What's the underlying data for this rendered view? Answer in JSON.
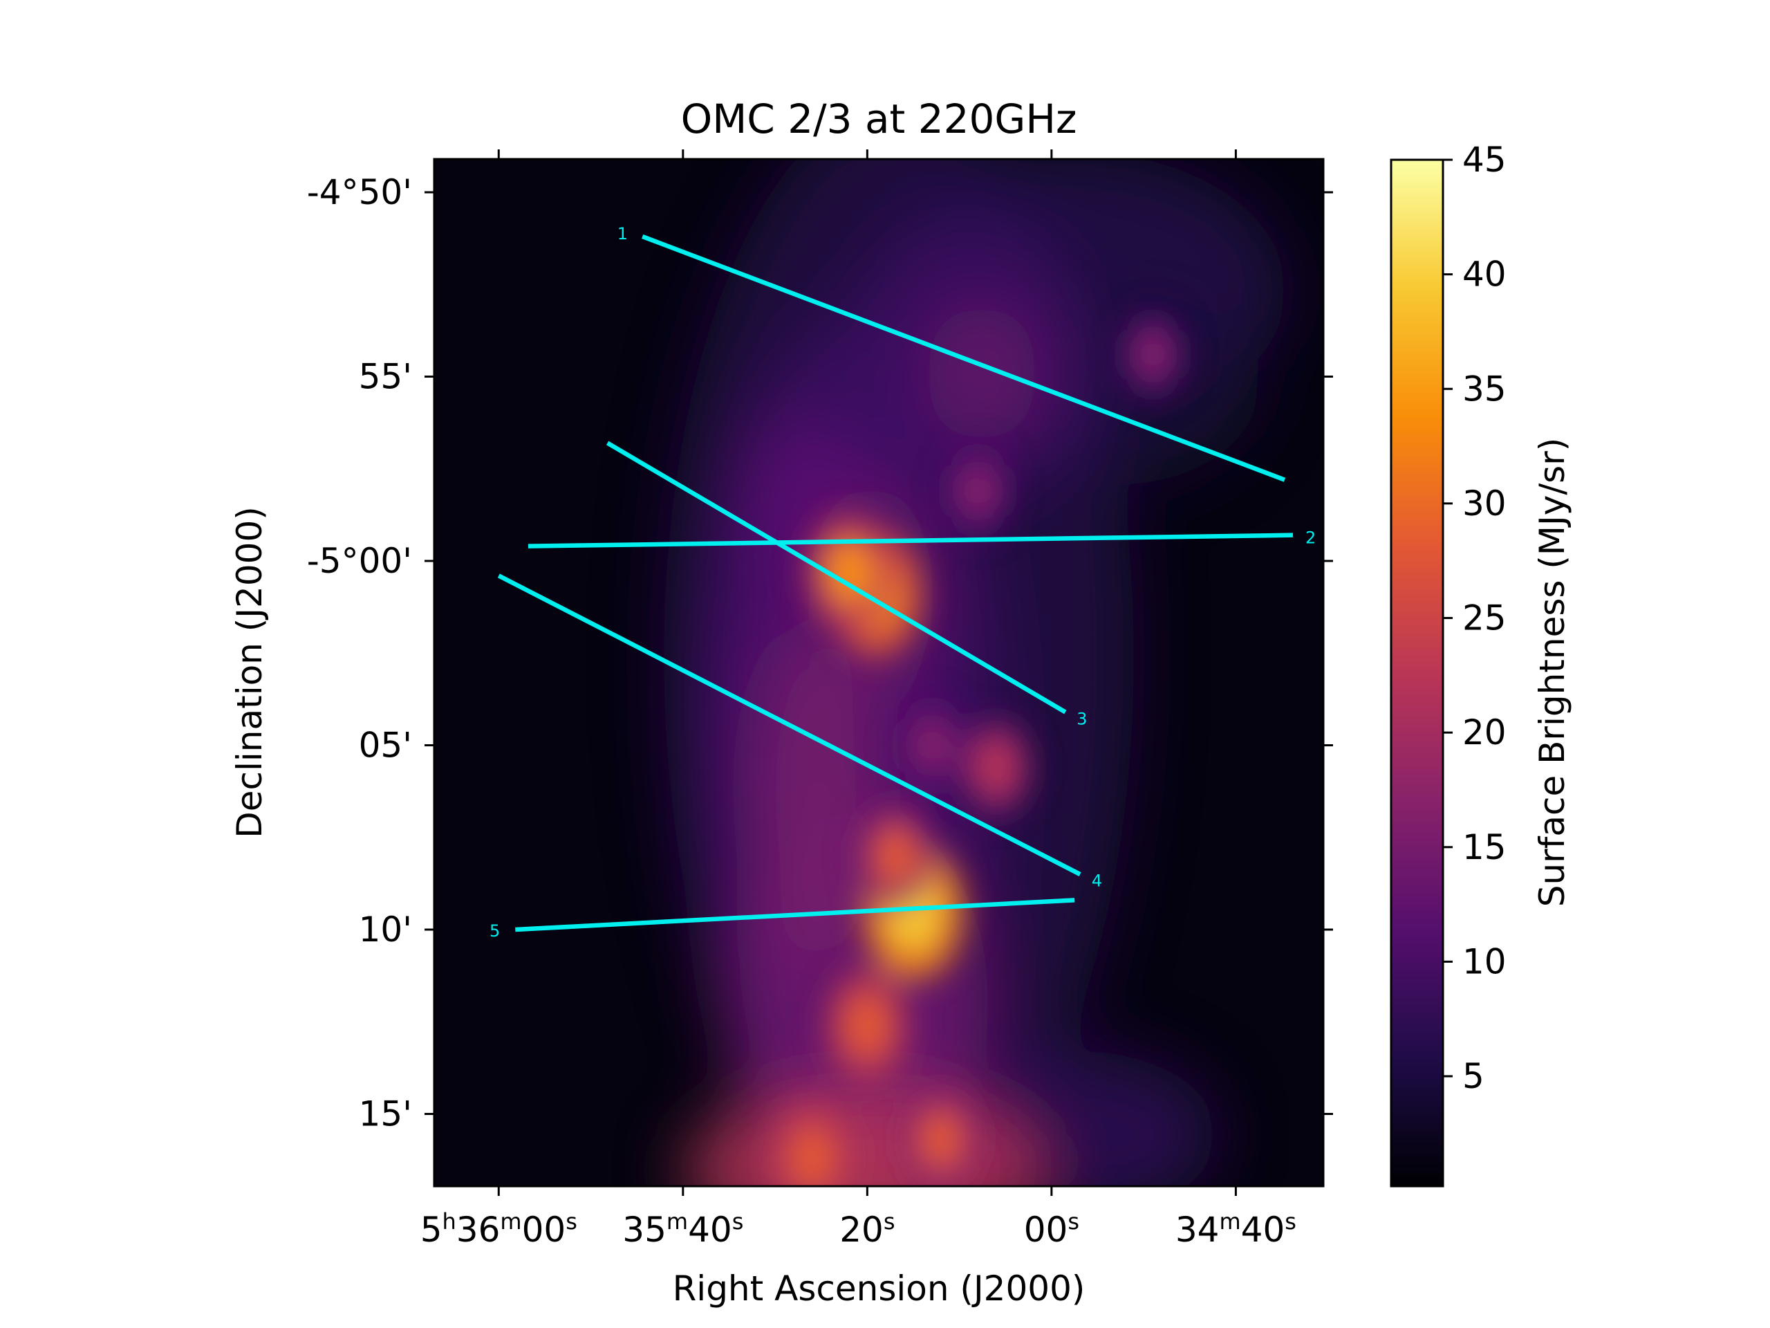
{
  "chart_data": {
    "type": "heatmap",
    "title": "OMC 2/3 at 220GHz",
    "xlabel": "Right Ascension (J2000)",
    "ylabel": "Declination (J2000)",
    "x_ticks": [
      {
        "label": "5h36m00s",
        "parts": [
          "5",
          "h",
          "36",
          "m",
          "00",
          "s"
        ],
        "ra_offset_s": 0
      },
      {
        "label": "35m40s",
        "parts": [
          "35",
          "m",
          "40",
          "s"
        ],
        "ra_offset_s": -20
      },
      {
        "label": "20s",
        "parts": [
          "20",
          "s"
        ],
        "ra_offset_s": -40
      },
      {
        "label": "00s",
        "parts": [
          "00",
          "s"
        ],
        "ra_offset_s": -60
      },
      {
        "label": "34m40s",
        "parts": [
          "34",
          "m",
          "40",
          "s"
        ],
        "ra_offset_s": -80
      }
    ],
    "x_range_ra_offset_s": [
      7,
      -89.5
    ],
    "y_ticks": [
      {
        "label": "-4°50'",
        "dec_arcmin": -290
      },
      {
        "label": "55'",
        "dec_arcmin": -295
      },
      {
        "label": "-5°00'",
        "dec_arcmin": -300
      },
      {
        "label": "05'",
        "dec_arcmin": -305
      },
      {
        "label": "10'",
        "dec_arcmin": -310
      },
      {
        "label": "15'",
        "dec_arcmin": -315
      }
    ],
    "y_range_dec_arcmin": [
      -316.96,
      -289.1
    ],
    "colorbar": {
      "label": "Surface Brightness (MJy/sr)",
      "min": 0.2,
      "max": 45,
      "ticks": [
        5,
        10,
        15,
        20,
        25,
        30,
        35,
        40,
        45
      ],
      "colormap": [
        "#000004",
        "#1f0c48",
        "#550f6d",
        "#88226a",
        "#ba3655",
        "#e35933",
        "#f98e09",
        "#f8c932",
        "#fcffa4"
      ]
    },
    "emission_peaks": [
      {
        "ra_offset_s": -41,
        "dec_arcmin": -300.9,
        "value": 36
      },
      {
        "ra_offset_s": -38,
        "dec_arcmin": -300.3,
        "value": 32
      },
      {
        "ra_offset_s": -45,
        "dec_arcmin": -309.5,
        "value": 42
      },
      {
        "ra_offset_s": -40,
        "dec_arcmin": -312.6,
        "value": 30
      },
      {
        "ra_offset_s": -43,
        "dec_arcmin": -308.0,
        "value": 26
      },
      {
        "ra_offset_s": -48,
        "dec_arcmin": -315.7,
        "value": 26
      },
      {
        "ra_offset_s": -34,
        "dec_arcmin": -316.2,
        "value": 28
      },
      {
        "ra_offset_s": -54,
        "dec_arcmin": -305.6,
        "value": 20
      },
      {
        "ra_offset_s": -47,
        "dec_arcmin": -305.0,
        "value": 18
      },
      {
        "ra_offset_s": -52,
        "dec_arcmin": -298.1,
        "value": 17
      },
      {
        "ra_offset_s": -71,
        "dec_arcmin": -294.4,
        "value": 15
      }
    ],
    "cuts": [
      {
        "label": "1",
        "start": {
          "ra_offset_s": -15.6,
          "dec_arcmin": -291.2
        },
        "end": {
          "ra_offset_s": -85.3,
          "dec_arcmin": -297.8
        }
      },
      {
        "label": "2",
        "start": {
          "ra_offset_s": -3.2,
          "dec_arcmin": -299.6
        },
        "end": {
          "ra_offset_s": -86.2,
          "dec_arcmin": -299.3
        }
      },
      {
        "label": "3",
        "start": {
          "ra_offset_s": -11.8,
          "dec_arcmin": -296.8
        },
        "end": {
          "ra_offset_s": -61.5,
          "dec_arcmin": -304.1
        }
      },
      {
        "label": "4",
        "start": {
          "ra_offset_s": 0,
          "dec_arcmin": -300.4
        },
        "end": {
          "ra_offset_s": -63.1,
          "dec_arcmin": -308.5
        }
      },
      {
        "label": "5",
        "start": {
          "ra_offset_s": -1.8,
          "dec_arcmin": -310.0
        },
        "end": {
          "ra_offset_s": -62.5,
          "dec_arcmin": -309.2
        }
      }
    ]
  }
}
